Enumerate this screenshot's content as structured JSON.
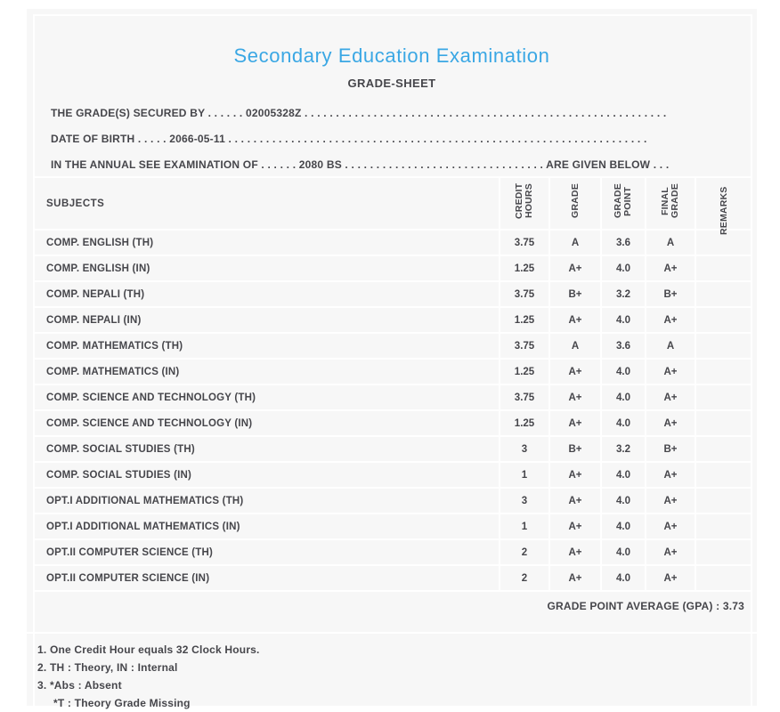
{
  "page": {
    "title": "Secondary Education Examination",
    "subtitle": "GRADE-SHEET"
  },
  "info_lines": [
    "THE GRADE(S) SECURED BY . . . . . . 02005328Z . . . . . . . . . . . . . . . . . . . . . . . . . . . . . . . . . . . . . . . . . . . . . . . . . . . . . . . . . .",
    "DATE OF BIRTH . . . . . 2066-05-11 . . . . . . . . . . . . . . . . . . . . . . . . . . . . . . . . . . . . . . . . . . . . . . . . . . . . . . . . . . . . . . . . . . .",
    "IN THE ANNUAL SEE EXAMINATION OF . . . . . . 2080 BS . . . . . . . . . . . . . . . . . . . . . . . . . . . . . . . . ARE GIVEN BELOW . . ."
  ],
  "table": {
    "headers": [
      "SUBJECTS",
      "CREDIT HOURS",
      "GRADE",
      "GRADE POINT",
      "FINAL GRADE",
      "REMARKS"
    ],
    "rows": [
      {
        "subject": "COMP. ENGLISH (TH)",
        "credit_hours": "3.75",
        "grade": "A",
        "grade_point": "3.6",
        "final_grade": "A",
        "remarks": ""
      },
      {
        "subject": "COMP. ENGLISH (IN)",
        "credit_hours": "1.25",
        "grade": "A+",
        "grade_point": "4.0",
        "final_grade": "A+",
        "remarks": ""
      },
      {
        "subject": "COMP. NEPALI (TH)",
        "credit_hours": "3.75",
        "grade": "B+",
        "grade_point": "3.2",
        "final_grade": "B+",
        "remarks": ""
      },
      {
        "subject": "COMP. NEPALI (IN)",
        "credit_hours": "1.25",
        "grade": "A+",
        "grade_point": "4.0",
        "final_grade": "A+",
        "remarks": ""
      },
      {
        "subject": "COMP. MATHEMATICS (TH)",
        "credit_hours": "3.75",
        "grade": "A",
        "grade_point": "3.6",
        "final_grade": "A",
        "remarks": ""
      },
      {
        "subject": "COMP. MATHEMATICS (IN)",
        "credit_hours": "1.25",
        "grade": "A+",
        "grade_point": "4.0",
        "final_grade": "A+",
        "remarks": ""
      },
      {
        "subject": "COMP. SCIENCE AND TECHNOLOGY (TH)",
        "credit_hours": "3.75",
        "grade": "A+",
        "grade_point": "4.0",
        "final_grade": "A+",
        "remarks": ""
      },
      {
        "subject": "COMP. SCIENCE AND TECHNOLOGY (IN)",
        "credit_hours": "1.25",
        "grade": "A+",
        "grade_point": "4.0",
        "final_grade": "A+",
        "remarks": ""
      },
      {
        "subject": "COMP. SOCIAL STUDIES (TH)",
        "credit_hours": "3",
        "grade": "B+",
        "grade_point": "3.2",
        "final_grade": "B+",
        "remarks": ""
      },
      {
        "subject": "COMP. SOCIAL STUDIES (IN)",
        "credit_hours": "1",
        "grade": "A+",
        "grade_point": "4.0",
        "final_grade": "A+",
        "remarks": ""
      },
      {
        "subject": "OPT.I ADDITIONAL MATHEMATICS (TH)",
        "credit_hours": "3",
        "grade": "A+",
        "grade_point": "4.0",
        "final_grade": "A+",
        "remarks": ""
      },
      {
        "subject": "OPT.I ADDITIONAL MATHEMATICS (IN)",
        "credit_hours": "1",
        "grade": "A+",
        "grade_point": "4.0",
        "final_grade": "A+",
        "remarks": ""
      },
      {
        "subject": "OPT.II COMPUTER SCIENCE (TH)",
        "credit_hours": "2",
        "grade": "A+",
        "grade_point": "4.0",
        "final_grade": "A+",
        "remarks": ""
      },
      {
        "subject": "OPT.II COMPUTER SCIENCE (IN)",
        "credit_hours": "2",
        "grade": "A+",
        "grade_point": "4.0",
        "final_grade": "A+",
        "remarks": ""
      }
    ]
  },
  "summary": {
    "gpa_text": "GRADE POINT AVERAGE (GPA) : 3.73"
  },
  "notes": [
    "1. One Credit Hour equals 32 Clock Hours.",
    "2. TH : Theory, IN : Internal",
    "3. *Abs : Absent",
    "*T : Theory Grade Missing"
  ],
  "colors": {
    "title_blue": "#3aa7e4",
    "panel_background": "#f7f7f7",
    "text": "#46464b",
    "grid_line": "#ffffff"
  }
}
